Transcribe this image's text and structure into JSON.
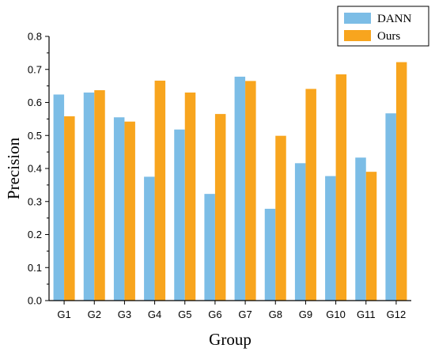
{
  "chart_data": {
    "type": "bar",
    "title": "",
    "xlabel": "Group",
    "ylabel": "Precision",
    "ylim": [
      0.0,
      0.8
    ],
    "yticks": [
      "0.0",
      "0.1",
      "0.2",
      "0.3",
      "0.4",
      "0.5",
      "0.6",
      "0.7",
      "0.8"
    ],
    "categories": [
      "G1",
      "G2",
      "G3",
      "G4",
      "G5",
      "G6",
      "G7",
      "G8",
      "G9",
      "G10",
      "G11",
      "G12"
    ],
    "series": [
      {
        "name": "DANN",
        "color": "#7CBDE6",
        "values": [
          0.624,
          0.63,
          0.555,
          0.375,
          0.518,
          0.323,
          0.678,
          0.278,
          0.416,
          0.377,
          0.433,
          0.567
        ]
      },
      {
        "name": "Ours",
        "color": "#F8A51E",
        "values": [
          0.558,
          0.637,
          0.542,
          0.666,
          0.63,
          0.565,
          0.665,
          0.499,
          0.641,
          0.685,
          0.39,
          0.722
        ]
      }
    ],
    "legend_position": "top-right",
    "grid": false
  }
}
